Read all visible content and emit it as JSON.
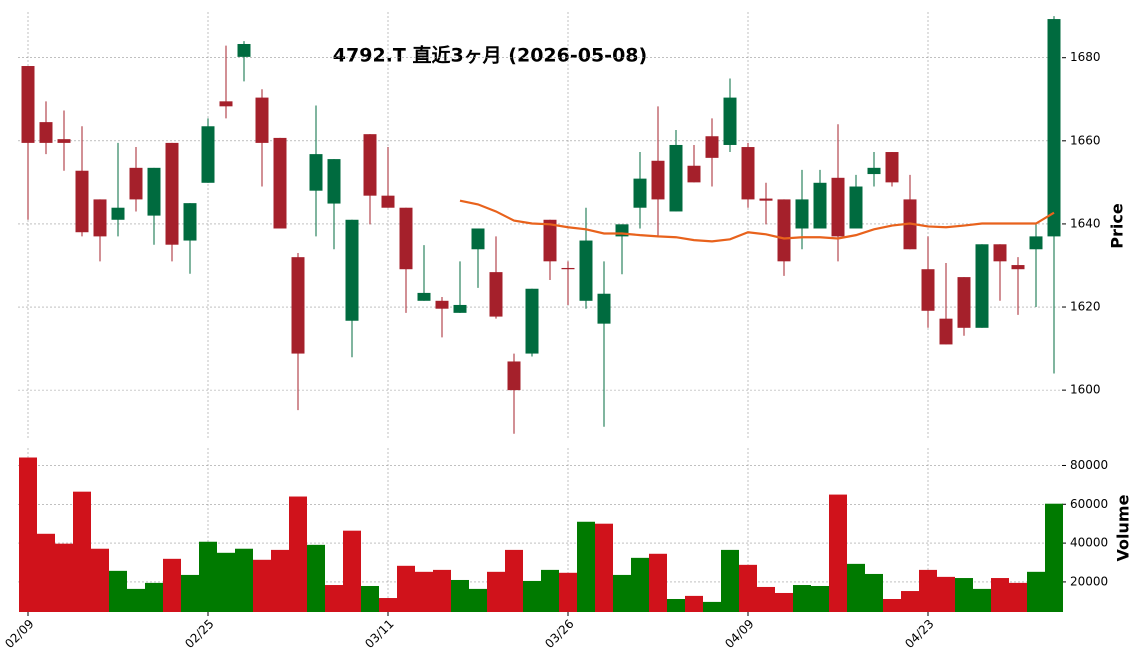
{
  "chart_data": {
    "type": "candlestick",
    "title": "4792.T  直近3ヶ月  (2026-05-08)",
    "ylabel": "Price",
    "categories": [
      "02/09",
      null,
      null,
      null,
      null,
      null,
      null,
      null,
      null,
      null,
      "02/25",
      null,
      null,
      null,
      null,
      null,
      null,
      null,
      null,
      null,
      "03/11",
      null,
      null,
      null,
      null,
      null,
      null,
      null,
      null,
      null,
      "03/26",
      null,
      null,
      null,
      null,
      null,
      null,
      null,
      null,
      null,
      "04/09",
      null,
      null,
      null,
      null,
      null,
      null,
      null,
      null,
      null,
      "04/23",
      null,
      null,
      null,
      null,
      null,
      null,
      null
    ],
    "open": [
      1678,
      1664.5,
      1660.4,
      1652.8,
      1645.9,
      1641,
      1653.5,
      1642,
      1659.5,
      1636,
      1649.9,
      1669.5,
      1680.2,
      1670.4,
      1660.7,
      1632,
      1648,
      1644.9,
      1616.7,
      1661.6,
      1646.8,
      1643.9,
      1621.5,
      1621.5,
      1618.6,
      1633.9,
      1628.4,
      1606.9,
      1608.8,
      1641,
      1629.4,
      1621.5,
      1616,
      1637,
      1643.9,
      1655.2,
      1643,
      1654,
      1661.1,
      1659,
      1658.5,
      1646.1,
      1645.9,
      1638.9,
      1638.9,
      1651.1,
      1638.9,
      1652,
      1657.3,
      1645.9,
      1629.1,
      1617.2,
      1627.2,
      1615,
      1635.1,
      1630.1,
      1633.9,
      1637
    ],
    "high": [
      1678,
      1669.5,
      1667.3,
      1663.5,
      1645.9,
      1659.5,
      1658.5,
      1653.5,
      1659.5,
      1645,
      1665.4,
      1682.9,
      1684,
      1672.4,
      1660.7,
      1633,
      1668.5,
      1655.6,
      1641,
      1661.6,
      1658.5,
      1643.9,
      1634.9,
      1622.4,
      1631,
      1638.9,
      1637,
      1608.8,
      1624.4,
      1641,
      1631,
      1643.9,
      1631,
      1639.9,
      1657.3,
      1668.3,
      1662.6,
      1659,
      1665.4,
      1675,
      1659.5,
      1649.9,
      1645.9,
      1653,
      1653,
      1664,
      1651.8,
      1657.3,
      1657.3,
      1651.8,
      1637,
      1630.6,
      1627.2,
      1635.1,
      1635.1,
      1632,
      1640.1,
      1690
    ],
    "low": [
      1641,
      1656.8,
      1652.8,
      1637,
      1631,
      1637,
      1643,
      1635,
      1631,
      1628,
      1649.9,
      1665.4,
      1674.3,
      1649,
      1638.9,
      1595.2,
      1637,
      1633.9,
      1607.9,
      1639.9,
      1643.9,
      1618.6,
      1621.5,
      1612.7,
      1618.6,
      1624.6,
      1617.2,
      1589.5,
      1608.1,
      1626.5,
      1620.5,
      1619.6,
      1591.2,
      1627.9,
      1638.9,
      1637,
      1643,
      1650,
      1649,
      1657.3,
      1643.9,
      1639.9,
      1627.5,
      1633.9,
      1638.9,
      1631,
      1638.9,
      1649,
      1649,
      1633.9,
      1615,
      1611,
      1613.1,
      1615,
      1621.5,
      1618.1,
      1620,
      1604
    ],
    "close": [
      1659.5,
      1659.5,
      1659.5,
      1638,
      1637,
      1643.9,
      1645.9,
      1653.5,
      1635,
      1645,
      1663.5,
      1668.3,
      1683.3,
      1659.5,
      1638.9,
      1608.8,
      1656.8,
      1655.6,
      1641,
      1646.8,
      1643.9,
      1629.1,
      1623.4,
      1619.6,
      1620.5,
      1638.9,
      1617.7,
      1600,
      1624.4,
      1631,
      1629.1,
      1636,
      1623.2,
      1639.9,
      1650.9,
      1645.9,
      1659,
      1650,
      1655.9,
      1670.4,
      1645.9,
      1645.6,
      1631,
      1645.9,
      1649.9,
      1637,
      1649,
      1653.5,
      1650,
      1633.9,
      1619.1,
      1611,
      1615,
      1635.1,
      1631,
      1629.1,
      1637,
      1689.3
    ],
    "up_color": "#006b3f",
    "down_color": "#a5202b",
    "ylim": [
      1588,
      1691
    ],
    "yticks": [
      1600,
      1620,
      1640,
      1660,
      1680
    ],
    "grid": true,
    "moving_average": {
      "color": "#e8621c",
      "values": [
        null,
        null,
        null,
        null,
        null,
        null,
        null,
        null,
        null,
        null,
        null,
        null,
        null,
        null,
        null,
        null,
        null,
        null,
        null,
        null,
        null,
        null,
        null,
        null,
        1645.6,
        1644.7,
        1643,
        1640.8,
        1640.1,
        1639.9,
        1639.2,
        1638.7,
        1637.7,
        1637.7,
        1637.3,
        1637,
        1636.8,
        1636.1,
        1635.8,
        1636.3,
        1638,
        1637.5,
        1636.5,
        1636.8,
        1636.8,
        1636.5,
        1637.3,
        1638.7,
        1639.6,
        1640.1,
        1639.4,
        1639.2,
        1639.6,
        1640.1,
        1640.1,
        1640.1,
        1640.1,
        1642.7
      ]
    },
    "volume": {
      "ylabel": "Volume",
      "values": [
        84100,
        44800,
        39700,
        66500,
        37100,
        25700,
        16400,
        19500,
        31900,
        23600,
        40700,
        35000,
        37100,
        31400,
        36500,
        64000,
        39100,
        18400,
        46400,
        17900,
        11700,
        28300,
        25200,
        26200,
        21000,
        16400,
        25200,
        36500,
        20500,
        26200,
        24700,
        51000,
        50000,
        23600,
        32400,
        34500,
        11200,
        12800,
        9700,
        36500,
        28800,
        17400,
        14300,
        18400,
        17900,
        65000,
        29300,
        24100,
        11200,
        15300,
        26200,
        22600,
        22000,
        16400,
        22000,
        19500,
        25200,
        60300
      ],
      "colors": [
        "#d0121b",
        "#d0121b",
        "#d0121b",
        "#d0121b",
        "#d0121b",
        "#007a00",
        "#007a00",
        "#007a00",
        "#d0121b",
        "#007a00",
        "#007a00",
        "#007a00",
        "#007a00",
        "#d0121b",
        "#d0121b",
        "#d0121b",
        "#007a00",
        "#d0121b",
        "#d0121b",
        "#007a00",
        "#d0121b",
        "#d0121b",
        "#d0121b",
        "#d0121b",
        "#007a00",
        "#007a00",
        "#d0121b",
        "#d0121b",
        "#007a00",
        "#007a00",
        "#d0121b",
        "#007a00",
        "#d0121b",
        "#007a00",
        "#007a00",
        "#d0121b",
        "#007a00",
        "#d0121b",
        "#007a00",
        "#007a00",
        "#d0121b",
        "#d0121b",
        "#d0121b",
        "#007a00",
        "#007a00",
        "#d0121b",
        "#007a00",
        "#007a00",
        "#d0121b",
        "#d0121b",
        "#d0121b",
        "#d0121b",
        "#007a00",
        "#007a00",
        "#d0121b",
        "#d0121b",
        "#007a00",
        "#007a00"
      ],
      "ylim": [
        4500,
        89000
      ],
      "yticks": [
        20000,
        40000,
        60000,
        80000
      ]
    }
  }
}
